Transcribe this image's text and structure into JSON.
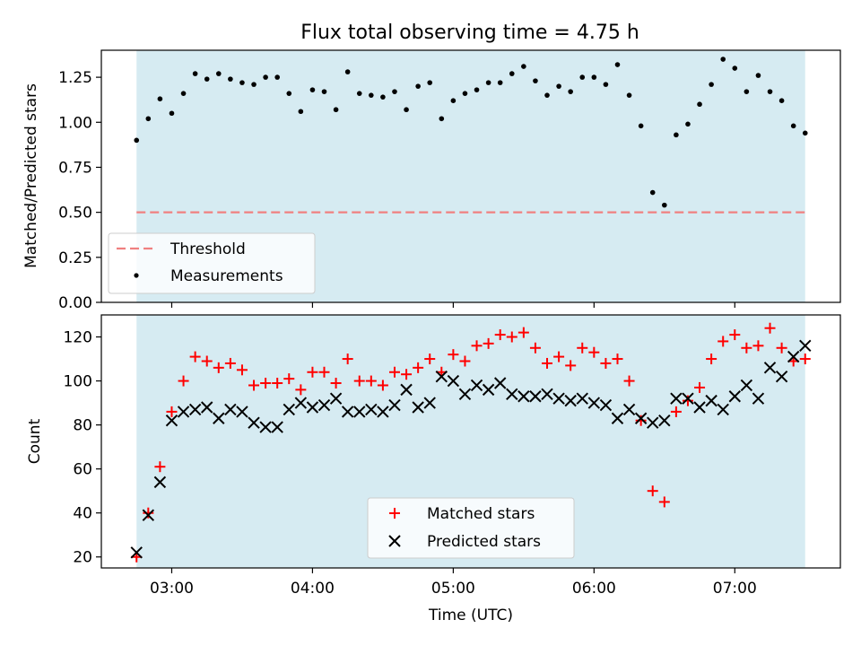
{
  "title": "Flux total observing time = 4.75 h",
  "chart_data": [
    {
      "type": "scatter",
      "panel": "top",
      "ylabel": "Matched/Predicted stars",
      "xlim": [
        "02:30",
        "07:45"
      ],
      "ylim": [
        0,
        1.4
      ],
      "yticks": [
        0.0,
        0.25,
        0.5,
        0.75,
        1.0,
        1.25
      ],
      "ytick_labels": [
        "0.00",
        "0.25",
        "0.50",
        "0.75",
        "1.00",
        "1.25"
      ],
      "grid": false,
      "observing_window": [
        "02:45",
        "07:30"
      ],
      "threshold": 0.5,
      "legend_position": "lower-left",
      "legend": [
        {
          "label": "Threshold",
          "style": "dashed-line",
          "color": "#f08080"
        },
        {
          "label": "Measurements",
          "style": "dot",
          "color": "#000000"
        }
      ],
      "series": [
        {
          "name": "Measurements",
          "color": "#000000",
          "x": [
            "02:45",
            "02:50",
            "02:55",
            "03:00",
            "03:05",
            "03:10",
            "03:15",
            "03:20",
            "03:25",
            "03:30",
            "03:35",
            "03:40",
            "03:45",
            "03:50",
            "03:55",
            "04:00",
            "04:05",
            "04:10",
            "04:15",
            "04:20",
            "04:25",
            "04:30",
            "04:35",
            "04:40",
            "04:45",
            "04:50",
            "04:55",
            "05:00",
            "05:05",
            "05:10",
            "05:15",
            "05:20",
            "05:25",
            "05:30",
            "05:35",
            "05:40",
            "05:45",
            "05:50",
            "05:55",
            "06:00",
            "06:05",
            "06:10",
            "06:15",
            "06:20",
            "06:25",
            "06:30",
            "06:35",
            "06:40",
            "06:45",
            "06:50",
            "06:55",
            "07:00",
            "07:05",
            "07:10",
            "07:15",
            "07:20",
            "07:25",
            "07:30"
          ],
          "y": [
            0.9,
            1.02,
            1.13,
            1.05,
            1.16,
            1.27,
            1.24,
            1.27,
            1.24,
            1.22,
            1.21,
            1.25,
            1.25,
            1.16,
            1.06,
            1.18,
            1.17,
            1.07,
            1.28,
            1.16,
            1.15,
            1.14,
            1.17,
            1.07,
            1.2,
            1.22,
            1.02,
            1.12,
            1.16,
            1.18,
            1.22,
            1.22,
            1.27,
            1.31,
            1.23,
            1.15,
            1.2,
            1.17,
            1.25,
            1.25,
            1.21,
            1.32,
            1.15,
            0.98,
            0.61,
            0.54,
            0.93,
            0.99,
            1.1,
            1.21,
            1.35,
            1.3,
            1.17,
            1.26,
            1.17,
            1.12,
            0.98,
            0.94
          ]
        }
      ]
    },
    {
      "type": "scatter",
      "panel": "bottom",
      "xlabel": "Time (UTC)",
      "ylabel": "Count",
      "xlim": [
        "02:30",
        "07:45"
      ],
      "xticks": [
        "03:00",
        "04:00",
        "05:00",
        "06:00",
        "07:00"
      ],
      "ylim": [
        15,
        130
      ],
      "yticks": [
        20,
        40,
        60,
        80,
        100,
        120
      ],
      "grid": false,
      "observing_window": [
        "02:45",
        "07:30"
      ],
      "legend_position": "bottom-center",
      "series": [
        {
          "name": "Matched stars",
          "marker": "plus",
          "color": "#ff0000",
          "x": [
            "02:45",
            "02:50",
            "02:55",
            "03:00",
            "03:05",
            "03:10",
            "03:15",
            "03:20",
            "03:25",
            "03:30",
            "03:35",
            "03:40",
            "03:45",
            "03:50",
            "03:55",
            "04:00",
            "04:05",
            "04:10",
            "04:15",
            "04:20",
            "04:25",
            "04:30",
            "04:35",
            "04:40",
            "04:45",
            "04:50",
            "04:55",
            "05:00",
            "05:05",
            "05:10",
            "05:15",
            "05:20",
            "05:25",
            "05:30",
            "05:35",
            "05:40",
            "05:45",
            "05:50",
            "05:55",
            "06:00",
            "06:05",
            "06:10",
            "06:15",
            "06:20",
            "06:25",
            "06:30",
            "06:35",
            "06:40",
            "06:45",
            "06:50",
            "06:55",
            "07:00",
            "07:05",
            "07:10",
            "07:15",
            "07:20",
            "07:25",
            "07:30"
          ],
          "y": [
            20,
            40,
            61,
            86,
            100,
            111,
            109,
            106,
            108,
            105,
            98,
            99,
            99,
            101,
            96,
            104,
            104,
            99,
            110,
            100,
            100,
            98,
            104,
            103,
            106,
            110,
            104,
            112,
            109,
            116,
            117,
            121,
            120,
            122,
            115,
            108,
            111,
            107,
            115,
            113,
            108,
            110,
            100,
            82,
            50,
            45,
            86,
            91,
            97,
            110,
            118,
            121,
            115,
            116,
            124,
            115,
            109,
            110
          ]
        },
        {
          "name": "Predicted stars",
          "marker": "x",
          "color": "#000000",
          "x": [
            "02:45",
            "02:50",
            "02:55",
            "03:00",
            "03:05",
            "03:10",
            "03:15",
            "03:20",
            "03:25",
            "03:30",
            "03:35",
            "03:40",
            "03:45",
            "03:50",
            "03:55",
            "04:00",
            "04:05",
            "04:10",
            "04:15",
            "04:20",
            "04:25",
            "04:30",
            "04:35",
            "04:40",
            "04:45",
            "04:50",
            "04:55",
            "05:00",
            "05:05",
            "05:10",
            "05:15",
            "05:20",
            "05:25",
            "05:30",
            "05:35",
            "05:40",
            "05:45",
            "05:50",
            "05:55",
            "06:00",
            "06:05",
            "06:10",
            "06:15",
            "06:20",
            "06:25",
            "06:30",
            "06:35",
            "06:40",
            "06:45",
            "06:50",
            "06:55",
            "07:00",
            "07:05",
            "07:10",
            "07:15",
            "07:20",
            "07:25",
            "07:30"
          ],
          "y": [
            22,
            39,
            54,
            82,
            86,
            87,
            88,
            83,
            87,
            86,
            81,
            79,
            79,
            87,
            90,
            88,
            89,
            92,
            86,
            86,
            87,
            86,
            89,
            96,
            88,
            90,
            102,
            100,
            94,
            98,
            96,
            99,
            94,
            93,
            93,
            94,
            92,
            91,
            92,
            90,
            89,
            83,
            87,
            83,
            81,
            82,
            92,
            92,
            88,
            91,
            87,
            93,
            98,
            92,
            106,
            102,
            111,
            116
          ]
        }
      ]
    }
  ]
}
